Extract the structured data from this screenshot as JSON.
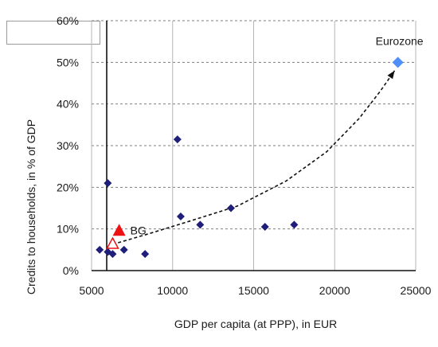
{
  "chart_data": {
    "type": "scatter",
    "title": "",
    "xlabel": "GDP per capita (at PPP), in EUR",
    "ylabel": "Credits to households, in % of GDP",
    "xlim": [
      5000,
      25000
    ],
    "ylim": [
      0,
      60
    ],
    "x_ticks": [
      5000,
      10000,
      15000,
      20000,
      25000
    ],
    "y_ticks": [
      0,
      10,
      20,
      30,
      40,
      50,
      60
    ],
    "y_tick_labels": [
      "0%",
      "10%",
      "20%",
      "30%",
      "40%",
      "50%",
      "60%"
    ],
    "grid": true,
    "legend": "none",
    "series": [
      {
        "color": "#1f1f7a",
        "marker": "diamond",
        "points": [
          {
            "x": 5500,
            "y": 5
          },
          {
            "x": 6000,
            "y": 4.5
          },
          {
            "x": 6300,
            "y": 4
          },
          {
            "x": 6000,
            "y": 21
          },
          {
            "x": 7000,
            "y": 5
          },
          {
            "x": 8300,
            "y": 4
          },
          {
            "x": 10300,
            "y": 31.5
          },
          {
            "x": 10500,
            "y": 13
          },
          {
            "x": 11700,
            "y": 11
          },
          {
            "x": 13600,
            "y": 15
          },
          {
            "x": 15700,
            "y": 10.5
          },
          {
            "x": 17500,
            "y": 11
          }
        ]
      },
      {
        "color": "#4f8ff7",
        "marker": "diamond",
        "points": [
          {
            "x": 23900,
            "y": 50,
            "label": "Eurozone"
          }
        ]
      },
      {
        "color": "#ee1111",
        "marker": "triangle",
        "points": [
          {
            "x": 6700,
            "y": 9.5,
            "label": "BG"
          }
        ]
      },
      {
        "color": "#ee1111",
        "marker": "triangle-open",
        "points": [
          {
            "x": 6300,
            "y": 6.3
          }
        ]
      }
    ],
    "trend": {
      "style": "dashed-arrow",
      "color": "#111111",
      "points": [
        {
          "x": 6300,
          "y": 6.3
        },
        {
          "x": 8500,
          "y": 8.8
        },
        {
          "x": 11000,
          "y": 11.8
        },
        {
          "x": 14000,
          "y": 15.5
        },
        {
          "x": 17000,
          "y": 21.5
        },
        {
          "x": 19500,
          "y": 28.5
        },
        {
          "x": 21500,
          "y": 36.5
        },
        {
          "x": 22800,
          "y": 43
        },
        {
          "x": 23700,
          "y": 48
        }
      ]
    }
  }
}
